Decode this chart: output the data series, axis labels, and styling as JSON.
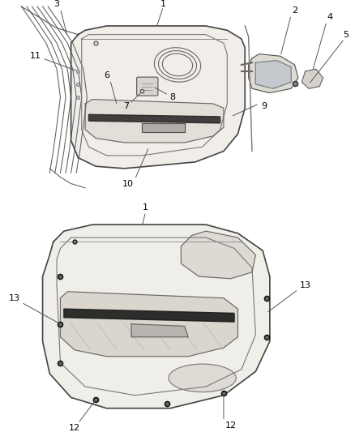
{
  "background_color": "#ffffff",
  "line_color": "#333333",
  "label_color": "#000000",
  "figsize": [
    4.38,
    5.33
  ],
  "dpi": 100
}
